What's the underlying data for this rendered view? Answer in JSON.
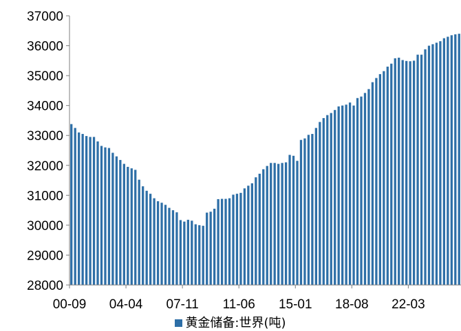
{
  "chart_data": {
    "type": "bar",
    "series": [
      {
        "name": "黄金储备:世界(吨)",
        "color": "#2E6FA7",
        "values": [
          33380,
          33250,
          33100,
          33050,
          32980,
          32950,
          32950,
          32800,
          32650,
          32600,
          32580,
          32420,
          32300,
          32180,
          32050,
          31950,
          31900,
          31850,
          31520,
          31300,
          31150,
          31050,
          30900,
          30800,
          30750,
          30680,
          30580,
          30500,
          30430,
          30170,
          30120,
          30180,
          30150,
          30030,
          30000,
          29980,
          30420,
          30450,
          30550,
          30870,
          30880,
          30880,
          30900,
          31020,
          31050,
          31080,
          31230,
          31320,
          31400,
          31600,
          31720,
          31870,
          31980,
          32080,
          32080,
          32050,
          32080,
          32100,
          32350,
          32320,
          32150,
          32850,
          32900,
          33020,
          33050,
          33250,
          33450,
          33580,
          33680,
          33750,
          33850,
          33970,
          34000,
          34030,
          34100,
          34000,
          34250,
          34300,
          34420,
          34550,
          34780,
          34920,
          35050,
          35150,
          35300,
          35400,
          35580,
          35600,
          35520,
          35490,
          35480,
          35500,
          35700,
          35700,
          35880,
          36000,
          36050,
          36100,
          36150,
          36250,
          36300,
          36350,
          36380,
          36400
        ]
      }
    ],
    "x_tick_labels": [
      "00-09",
      "04-04",
      "07-11",
      "11-06",
      "15-01",
      "18-08",
      "22-03"
    ],
    "x_tick_bar_index": [
      0,
      15,
      30,
      45,
      60,
      75,
      90
    ],
    "ylim": [
      28000,
      37000
    ],
    "y_ticks": [
      28000,
      29000,
      30000,
      31000,
      32000,
      33000,
      34000,
      35000,
      36000,
      37000
    ],
    "grid": false,
    "legend_position": "bottom"
  }
}
